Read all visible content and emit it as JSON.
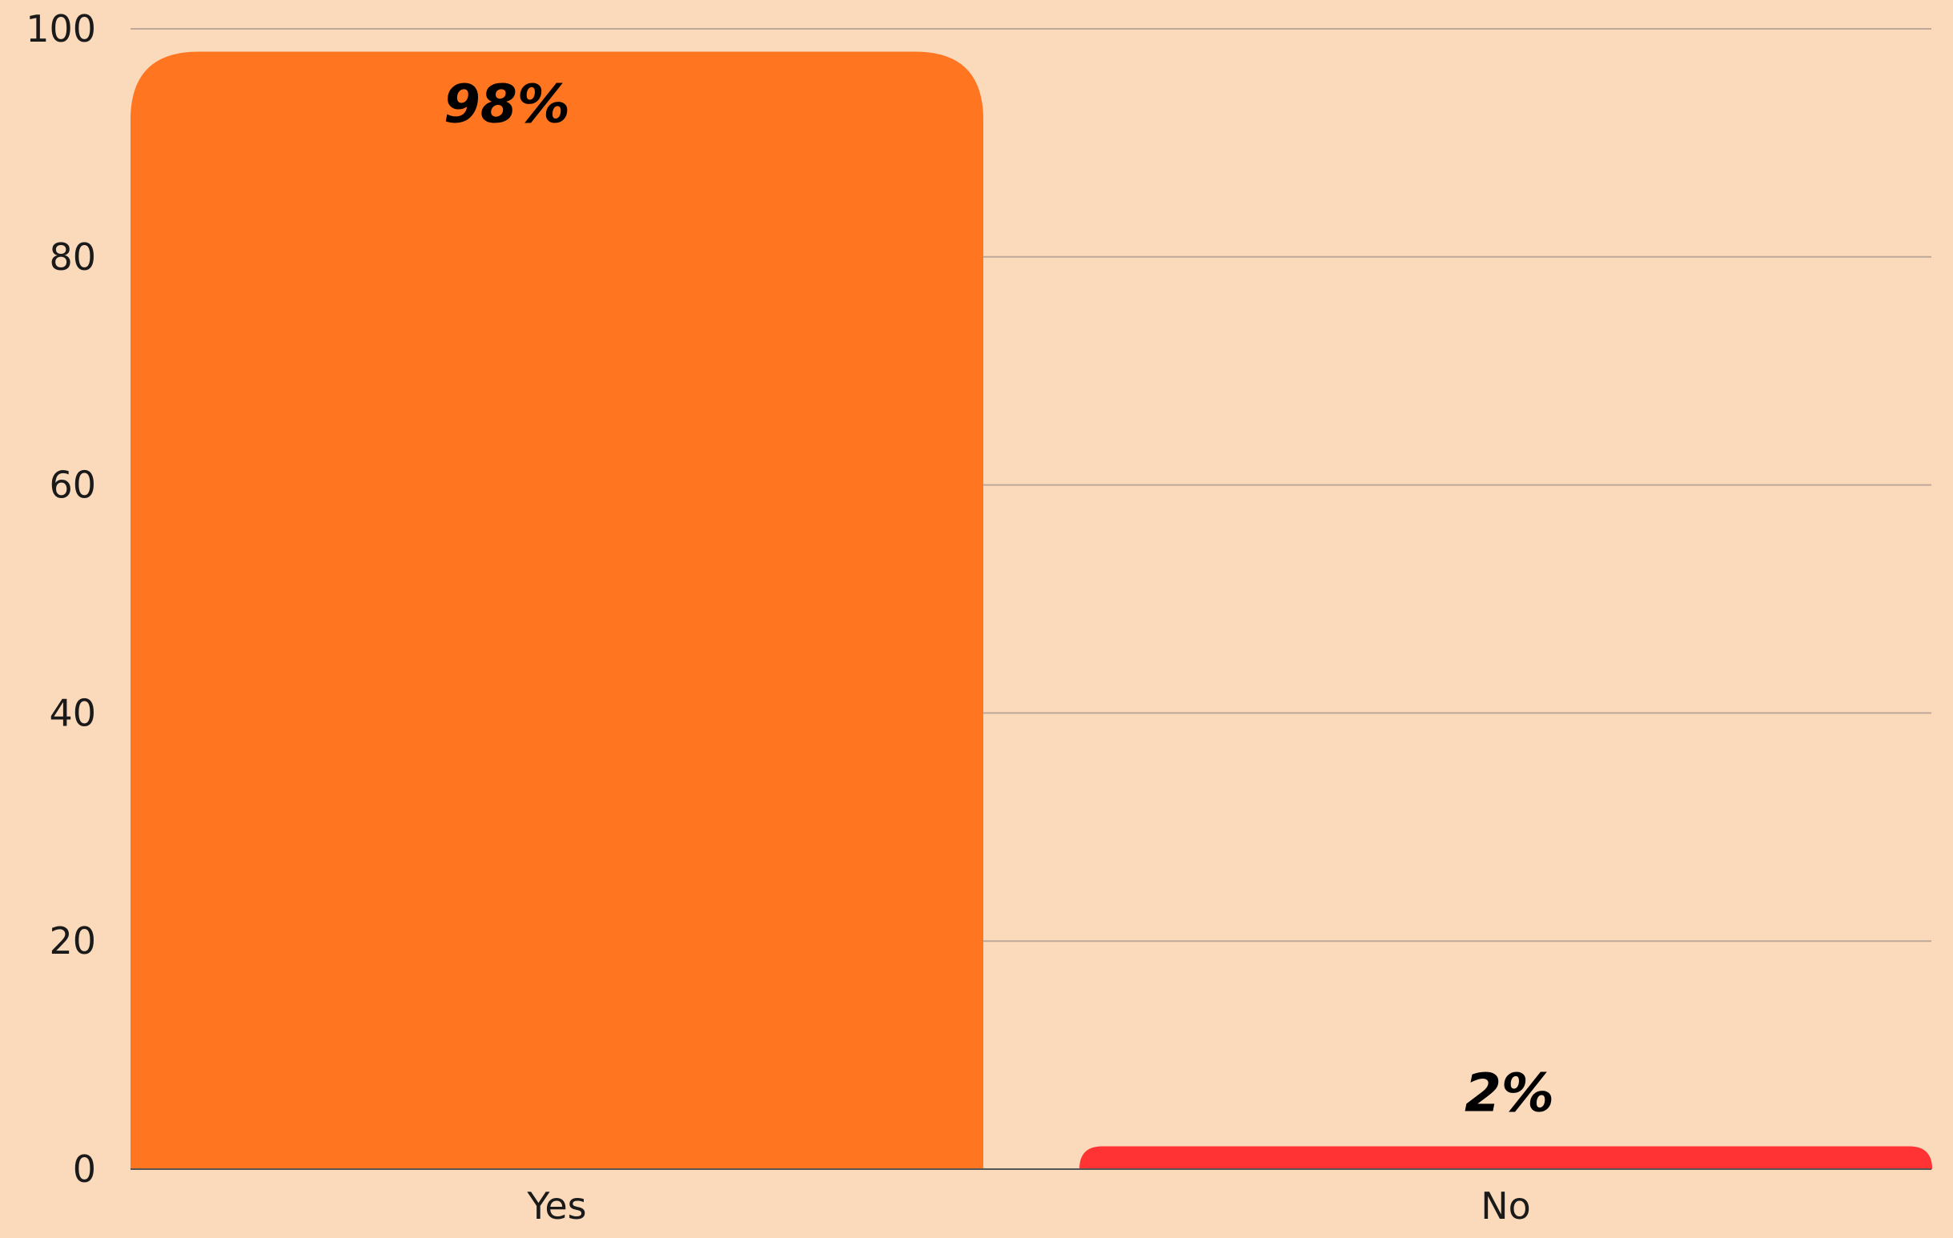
{
  "chart_data": {
    "type": "bar",
    "categories": [
      "Yes",
      "No"
    ],
    "values": [
      98,
      2
    ],
    "data_labels": [
      "98%",
      "2%"
    ],
    "bar_colors": [
      "#FF7520",
      "#FF3333"
    ],
    "background_color": "#FBDABB",
    "ylim": [
      0,
      100
    ],
    "yticks": [
      0,
      20,
      40,
      60,
      80,
      100
    ],
    "ytick_labels": [
      "0",
      "20",
      "40",
      "60",
      "80",
      "100"
    ],
    "grid": true,
    "title": "",
    "xlabel": "",
    "ylabel": ""
  }
}
